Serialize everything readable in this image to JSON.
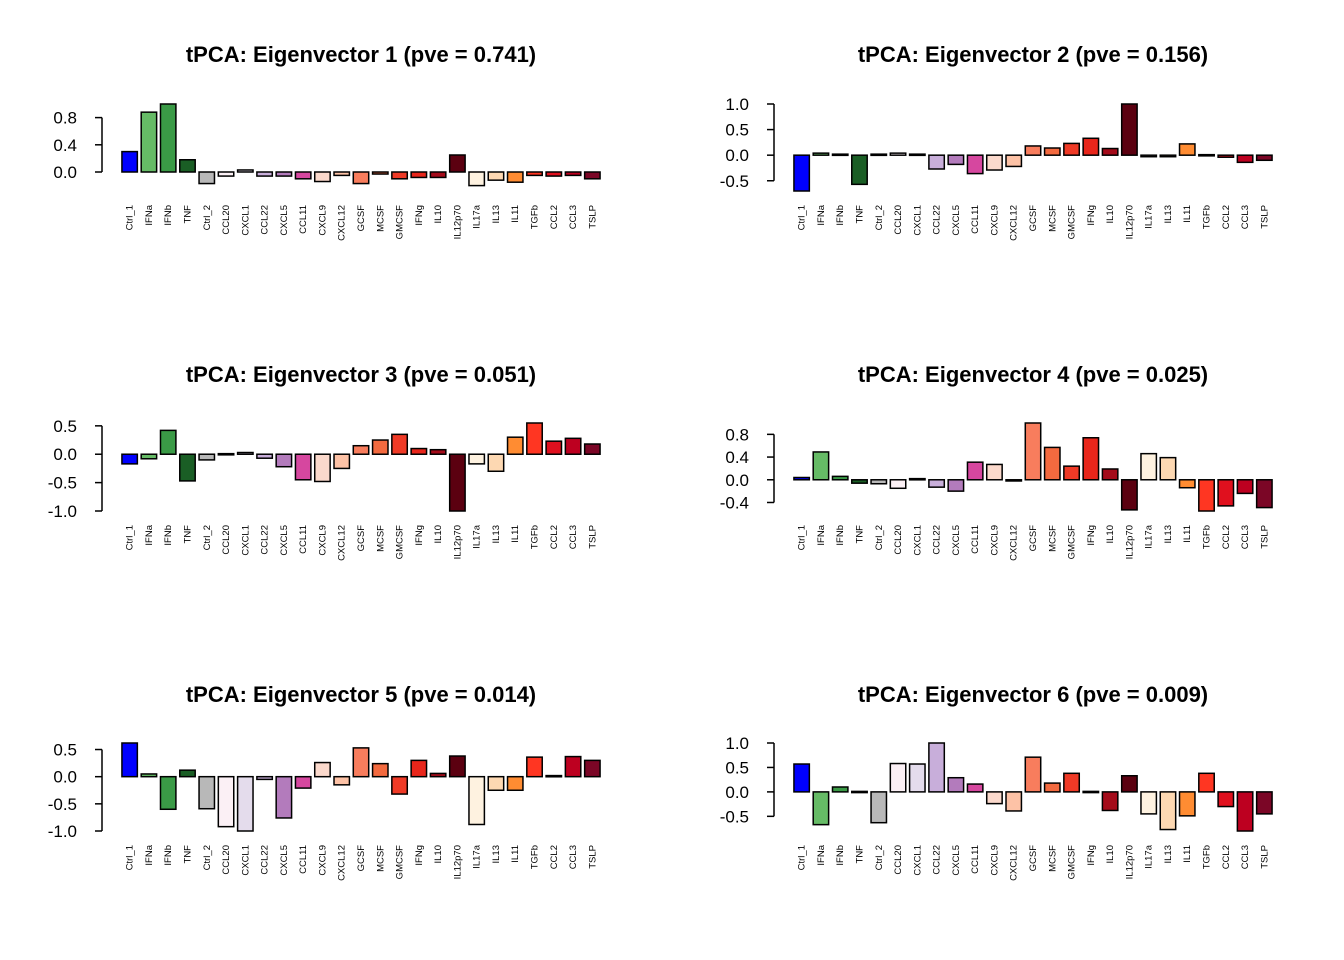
{
  "categories": [
    "Ctrl_1",
    "IFNa",
    "IFNb",
    "TNF",
    "Ctrl_2",
    "CCL20",
    "CXCL1",
    "CCL22",
    "CXCL5",
    "CCL11",
    "CXCL9",
    "CXCL12",
    "GCSF",
    "MCSF",
    "GMCSF",
    "IFNg",
    "IL10",
    "IL12p70",
    "IL17a",
    "IL13",
    "IL11",
    "TGFb",
    "CCL2",
    "CCL3",
    "TSLP"
  ],
  "bar_colors": [
    "#0000FF",
    "#66BB66",
    "#3A9A46",
    "#1A5E25",
    "#B8B8B8",
    "#FBF0F5",
    "#E4DCEC",
    "#C8AEDA",
    "#B37BBC",
    "#D6479F",
    "#FBD9CC",
    "#FDC2A6",
    "#F87D5D",
    "#F36A3F",
    "#EF3A26",
    "#E8261B",
    "#A40B1A",
    "#5B0010",
    "#FEF2E0",
    "#FDD8B2",
    "#FF8C32",
    "#FF3622",
    "#E0101E",
    "#BD0020",
    "#7B0626"
  ],
  "chart_data": [
    {
      "type": "bar",
      "title": "tPCA: Eigenvector 1 (pve = 0.741)",
      "ylim": [
        -0.25,
        1.0
      ],
      "yticks": [
        0.0,
        0.4,
        0.8
      ],
      "values": [
        0.3,
        0.88,
        1.0,
        0.18,
        -0.17,
        -0.06,
        0.03,
        -0.06,
        -0.06,
        -0.1,
        -0.14,
        -0.05,
        -0.17,
        -0.03,
        -0.1,
        -0.08,
        -0.08,
        0.25,
        -0.2,
        -0.12,
        -0.15,
        -0.05,
        -0.06,
        -0.05,
        -0.1
      ]
    },
    {
      "type": "bar",
      "title": "tPCA: Eigenvector 2 (pve = 0.156)",
      "ylim": [
        -0.7,
        1.0
      ],
      "yticks": [
        -0.5,
        0.0,
        0.5,
        1.0
      ],
      "values": [
        -0.7,
        0.04,
        0.02,
        -0.57,
        0.02,
        0.04,
        0.02,
        -0.27,
        -0.18,
        -0.36,
        -0.29,
        -0.22,
        0.18,
        0.14,
        0.23,
        0.33,
        0.13,
        1.0,
        -0.03,
        -0.03,
        0.22,
        0.01,
        -0.04,
        -0.14,
        -0.1
      ]
    },
    {
      "type": "bar",
      "title": "tPCA: Eigenvector 3 (pve = 0.051)",
      "ylim": [
        -1.0,
        0.55
      ],
      "yticks": [
        -1.0,
        -0.5,
        0.0,
        0.5
      ],
      "values": [
        -0.17,
        -0.08,
        0.42,
        -0.47,
        -0.1,
        0.01,
        0.03,
        -0.07,
        -0.22,
        -0.45,
        -0.48,
        -0.25,
        0.15,
        0.25,
        0.35,
        0.1,
        0.08,
        -1.0,
        -0.17,
        -0.3,
        0.3,
        0.55,
        0.23,
        0.28,
        0.18
      ]
    },
    {
      "type": "bar",
      "title": "tPCA: Eigenvector 4 (pve = 0.025)",
      "ylim": [
        -0.55,
        1.0
      ],
      "yticks": [
        -0.4,
        0.0,
        0.4,
        0.8
      ],
      "values": [
        0.04,
        0.49,
        0.06,
        -0.06,
        -0.07,
        -0.15,
        0.02,
        -0.13,
        -0.2,
        0.31,
        0.27,
        0.0,
        1.0,
        0.57,
        0.24,
        0.74,
        0.19,
        -0.53,
        0.46,
        0.39,
        -0.14,
        -0.55,
        -0.46,
        -0.24,
        -0.49
      ]
    },
    {
      "type": "bar",
      "title": "tPCA: Eigenvector 5 (pve = 0.014)",
      "ylim": [
        -1.0,
        0.62
      ],
      "yticks": [
        -1.0,
        -0.5,
        0.0,
        0.5
      ],
      "values": [
        0.62,
        0.05,
        -0.6,
        0.12,
        -0.59,
        -0.92,
        -1.0,
        -0.05,
        -0.76,
        -0.21,
        0.26,
        -0.15,
        0.53,
        0.24,
        -0.32,
        0.3,
        0.06,
        0.38,
        -0.88,
        -0.25,
        -0.25,
        0.36,
        0.02,
        0.37,
        0.3
      ]
    },
    {
      "type": "bar",
      "title": "tPCA: Eigenvector 6 (pve = 0.009)",
      "ylim": [
        -0.8,
        1.0
      ],
      "yticks": [
        -0.5,
        0.0,
        0.5,
        1.0
      ],
      "values": [
        0.57,
        -0.67,
        0.1,
        0.01,
        -0.63,
        0.58,
        0.57,
        1.0,
        0.29,
        0.16,
        -0.24,
        -0.39,
        0.71,
        0.18,
        0.38,
        0.01,
        -0.38,
        0.33,
        -0.45,
        -0.77,
        -0.49,
        0.38,
        -0.3,
        -0.8,
        -0.45
      ]
    }
  ]
}
